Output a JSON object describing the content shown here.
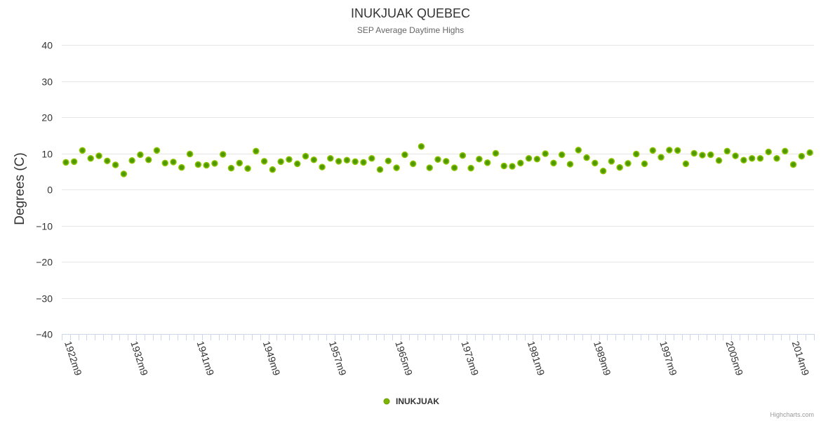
{
  "chart_data": {
    "type": "scatter",
    "title": "INUKJUAK QUEBEC",
    "subtitle": "SEP Average Daytime Highs",
    "xlabel": "",
    "ylabel": "Degrees (C)",
    "ylim": [
      -40,
      40
    ],
    "yticks": [
      40,
      30,
      20,
      10,
      0,
      -10,
      -20,
      -30,
      -40
    ],
    "grid": true,
    "legend_position": "bottom-center",
    "series": [
      {
        "name": "INUKJUAK",
        "color": "#7cb400",
        "values": [
          7.5,
          7.7,
          10.8,
          8.6,
          9.3,
          7.9,
          6.8,
          4.3,
          8.0,
          9.6,
          8.2,
          10.8,
          7.3,
          7.6,
          6.1,
          9.8,
          6.9,
          6.7,
          7.2,
          9.7,
          5.9,
          7.3,
          5.8,
          10.6,
          7.8,
          5.5,
          7.7,
          8.3,
          7.1,
          9.2,
          8.2,
          6.2,
          8.6,
          7.8,
          8.1,
          7.7,
          7.5,
          8.6,
          5.5,
          7.9,
          6.0,
          9.6,
          7.1,
          11.9,
          6.0,
          8.3,
          7.8,
          6.0,
          9.4,
          5.9,
          8.4,
          7.4,
          10.0,
          6.5,
          6.4,
          7.3,
          8.6,
          8.4,
          9.9,
          7.3,
          9.6,
          7.0,
          10.9,
          8.8,
          7.3,
          5.1,
          7.8,
          6.1,
          7.2,
          9.8,
          7.1,
          10.8,
          8.9,
          10.9,
          10.8,
          7.1,
          10.0,
          9.5,
          9.6,
          8.0,
          10.6,
          9.3,
          8.1,
          8.6,
          8.6,
          10.4,
          8.6,
          10.6,
          6.9,
          9.2,
          10.2
        ]
      }
    ],
    "x_tick_labels": [
      {
        "index": 0,
        "label": "1922m9"
      },
      {
        "index": 8,
        "label": "1932m9"
      },
      {
        "index": 16,
        "label": "1941m9"
      },
      {
        "index": 24,
        "label": "1949m9"
      },
      {
        "index": 32,
        "label": "1957m9"
      },
      {
        "index": 40,
        "label": "1965m9"
      },
      {
        "index": 48,
        "label": "1973m9"
      },
      {
        "index": 56,
        "label": "1981m9"
      },
      {
        "index": 64,
        "label": "1989m9"
      },
      {
        "index": 72,
        "label": "1997m9"
      },
      {
        "index": 80,
        "label": "2005m9"
      },
      {
        "index": 88,
        "label": "2014m9"
      }
    ]
  },
  "credits": "Highcharts.com"
}
